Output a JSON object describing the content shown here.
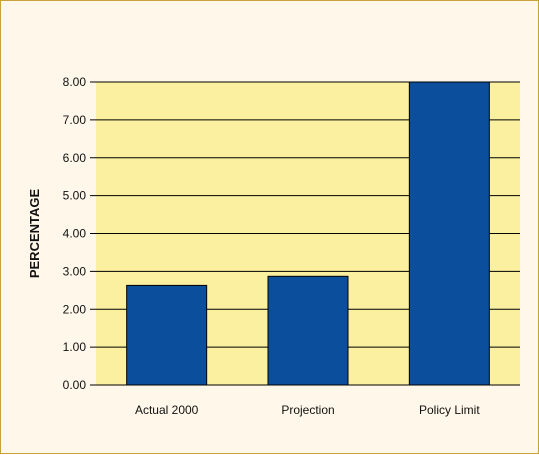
{
  "chart_data": {
    "type": "bar",
    "title": "",
    "xlabel": "",
    "ylabel": "PERCENTAGE",
    "categories": [
      "Actual 2000",
      "Projection",
      "Policy Limit"
    ],
    "values": [
      2.63,
      2.87,
      8.0
    ],
    "ylim": [
      0,
      8
    ],
    "yticks": [
      "0.00",
      "1.00",
      "2.00",
      "3.00",
      "4.00",
      "5.00",
      "6.00",
      "7.00",
      "8.00"
    ],
    "grid": true,
    "legend": "none"
  },
  "colors": {
    "bar": "#0b4f9c",
    "bar_outline": "#000000",
    "plot_background": "#fbf0a0",
    "frame_background": "#fff8ea",
    "frame_border": "#c9a23a",
    "gridline": "#000000"
  }
}
